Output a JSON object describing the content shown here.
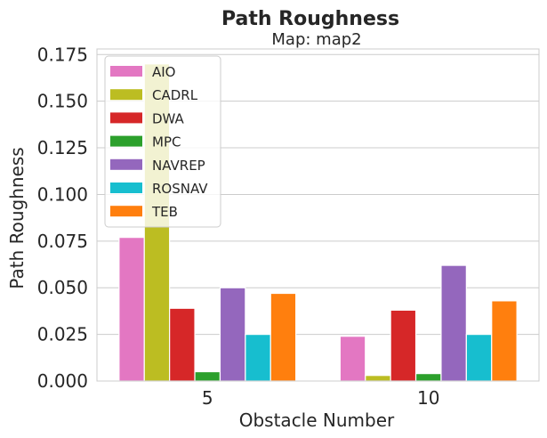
{
  "chart_data": {
    "type": "bar",
    "title": "Path Roughness",
    "subtitle": "Map: map2",
    "xlabel": "Obstacle Number",
    "ylabel": "Path Roughness",
    "categories": [
      "5",
      "10"
    ],
    "ylim": [
      0,
      0.178
    ],
    "yticks": [
      "0.000",
      "0.025",
      "0.050",
      "0.075",
      "0.100",
      "0.125",
      "0.150",
      "0.175"
    ],
    "ytick_values": [
      0,
      0.025,
      0.05,
      0.075,
      0.1,
      0.125,
      0.15,
      0.175
    ],
    "grid": true,
    "legend_position": "top-left",
    "series": [
      {
        "name": "AIO",
        "color": "#e377c2",
        "values": [
          0.077,
          0.024
        ]
      },
      {
        "name": "CADRL",
        "color": "#bcbd22",
        "values": [
          0.17,
          0.003
        ]
      },
      {
        "name": "DWA",
        "color": "#d62728",
        "values": [
          0.039,
          0.038
        ]
      },
      {
        "name": "MPC",
        "color": "#2ca02c",
        "values": [
          0.005,
          0.004
        ]
      },
      {
        "name": "NAVREP",
        "color": "#9467bd",
        "values": [
          0.05,
          0.062
        ]
      },
      {
        "name": "ROSNAV",
        "color": "#17becf",
        "values": [
          0.025,
          0.025
        ]
      },
      {
        "name": "TEB",
        "color": "#ff7f0e",
        "values": [
          0.047,
          0.043
        ]
      }
    ]
  }
}
